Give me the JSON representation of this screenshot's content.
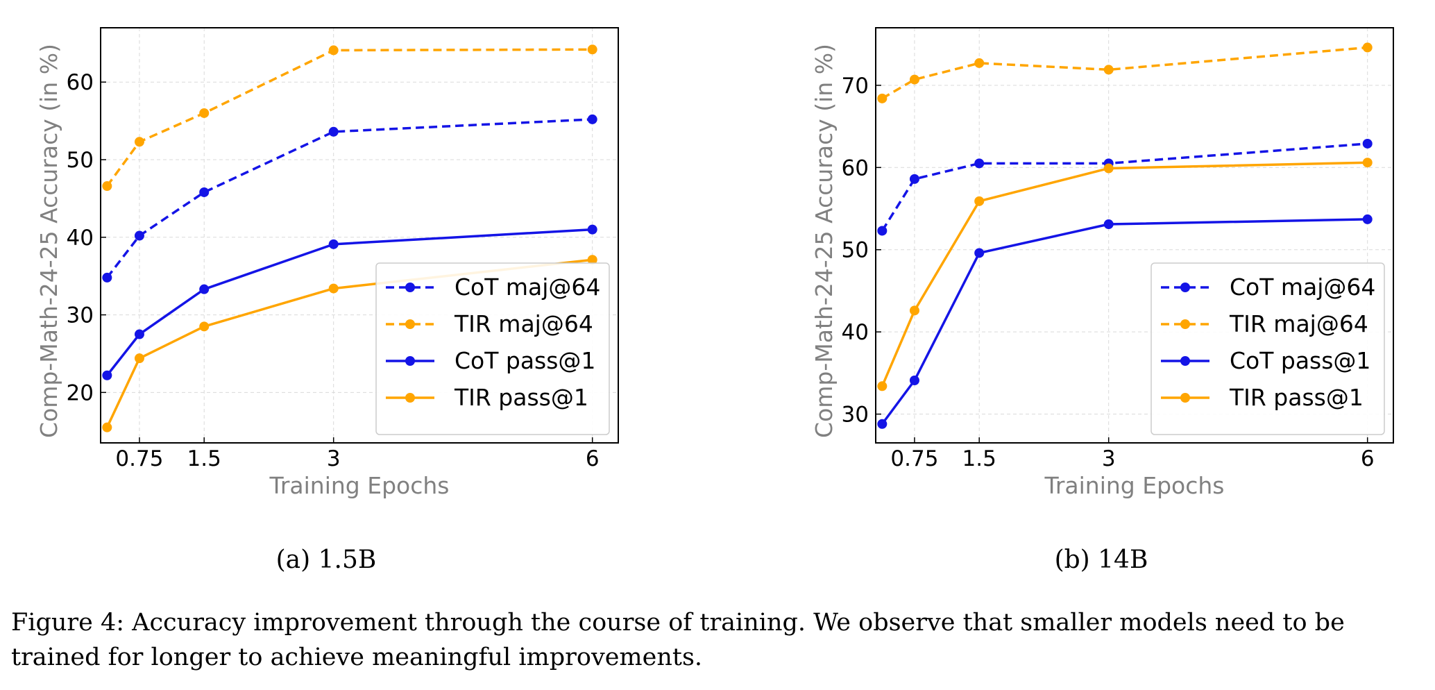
{
  "colors": {
    "cot": "#1414e6",
    "tir": "#ffa500",
    "grid": "#d9d9d9",
    "axis_title": "#808080"
  },
  "chart_data": [
    {
      "type": "line",
      "subcaption": "(a) 1.5B",
      "xlabel": "Training Epochs",
      "ylabel": "Comp-Math-24-25 Accuracy (in %)",
      "xlim": [
        0.3,
        6.3
      ],
      "ylim": [
        13.5,
        67
      ],
      "x_ticks": [
        0.75,
        1.5,
        3,
        6
      ],
      "x_tick_labels": [
        "0.75",
        "1.5",
        "3",
        "6"
      ],
      "y_ticks": [
        20,
        30,
        40,
        50,
        60
      ],
      "x": [
        0.375,
        0.75,
        1.5,
        3,
        6
      ],
      "grid": true,
      "legend_position": "lower-right",
      "series": [
        {
          "name": "CoT maj@64",
          "color": "cot",
          "dashed": true,
          "values": [
            34.8,
            40.2,
            45.8,
            53.6,
            55.2
          ]
        },
        {
          "name": "TIR maj@64",
          "color": "tir",
          "dashed": true,
          "values": [
            46.6,
            52.3,
            56.0,
            64.1,
            64.2
          ]
        },
        {
          "name": "CoT pass@1",
          "color": "cot",
          "dashed": false,
          "values": [
            22.2,
            27.5,
            33.3,
            39.1,
            41.0
          ]
        },
        {
          "name": "TIR pass@1",
          "color": "tir",
          "dashed": false,
          "values": [
            15.5,
            24.4,
            28.5,
            33.4,
            37.1
          ]
        }
      ]
    },
    {
      "type": "line",
      "subcaption": "(b) 14B",
      "xlabel": "Training Epochs",
      "ylabel": "Comp-Math-24-25 Accuracy (in %)",
      "xlim": [
        0.3,
        6.3
      ],
      "ylim": [
        26.5,
        77
      ],
      "x_ticks": [
        0.75,
        1.5,
        3,
        6
      ],
      "x_tick_labels": [
        "0.75",
        "1.5",
        "3",
        "6"
      ],
      "y_ticks": [
        30,
        40,
        50,
        60,
        70
      ],
      "x": [
        0.375,
        0.75,
        1.5,
        3,
        6
      ],
      "grid": true,
      "legend_position": "lower-right",
      "series": [
        {
          "name": "CoT maj@64",
          "color": "cot",
          "dashed": true,
          "values": [
            52.3,
            58.6,
            60.5,
            60.5,
            62.9
          ]
        },
        {
          "name": "TIR maj@64",
          "color": "tir",
          "dashed": true,
          "values": [
            68.4,
            70.7,
            72.7,
            71.9,
            74.6
          ]
        },
        {
          "name": "CoT pass@1",
          "color": "cot",
          "dashed": false,
          "values": [
            28.8,
            34.1,
            49.6,
            53.1,
            53.7
          ]
        },
        {
          "name": "TIR pass@1",
          "color": "tir",
          "dashed": false,
          "values": [
            33.4,
            42.6,
            55.9,
            59.9,
            60.6
          ]
        }
      ]
    }
  ],
  "caption": "Figure 4: Accuracy improvement through the course of training. We observe that smaller models need to be trained for longer to achieve meaningful improvements."
}
